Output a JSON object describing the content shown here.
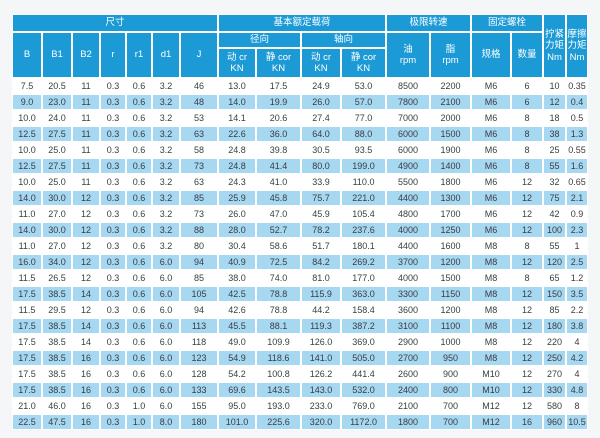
{
  "colors": {
    "header_bg": "#1C9AD6",
    "alt_row_bg": "#A6D8F2",
    "text_color": "#3C3C3C",
    "header_text": "#FFFFFF",
    "page_bg": "#F4F6F7"
  },
  "table": {
    "groups": {
      "dimensions": "尺寸",
      "basic_load": "基本额定载荷",
      "limit_speed": "极限转速",
      "fixing_bolt": "固定螺栓",
      "tightening_torque": "拧紧\n力矩\nNm",
      "friction_torque": "摩擦\n力矩\nNm"
    },
    "columns": {
      "b": "B",
      "b1": "B1",
      "b2": "B2",
      "r": "r",
      "r1": "r1",
      "d1": "d1",
      "j": "J",
      "radial": "径向",
      "axial": "轴向",
      "radial_dynamic": "动 cr\nKN",
      "radial_static": "静 cor\nKN",
      "axial_dynamic": "动 cr\nKN",
      "axial_static": "静 cor\nKN",
      "oil": "油\nrpm",
      "grease": "脂\nrpm",
      "spec": "规格",
      "qty": "数量"
    },
    "rows": [
      [
        "7.5",
        "20.5",
        "11",
        "0.3",
        "0.6",
        "3.2",
        "46",
        "13.0",
        "17.5",
        "24.9",
        "53.0",
        "8500",
        "2200",
        "M6",
        "6",
        "10",
        "0.35"
      ],
      [
        "9.0",
        "23.0",
        "11",
        "0.3",
        "0.6",
        "3.2",
        "48",
        "14.0",
        "19.9",
        "26.0",
        "57.0",
        "7800",
        "2100",
        "M6",
        "6",
        "12",
        "0.4"
      ],
      [
        "10.0",
        "24.0",
        "11",
        "0.3",
        "0.6",
        "3.2",
        "53",
        "14.1",
        "20.6",
        "27.4",
        "77.0",
        "7000",
        "2000",
        "M6",
        "8",
        "18",
        "0.5"
      ],
      [
        "12.5",
        "27.5",
        "11",
        "0.3",
        "0.6",
        "3.2",
        "63",
        "22.6",
        "36.0",
        "64.0",
        "88.0",
        "6000",
        "1500",
        "M6",
        "8",
        "38",
        "1.3"
      ],
      [
        "10.0",
        "25.0",
        "11",
        "0.3",
        "0.6",
        "3.2",
        "58",
        "24.8",
        "39.8",
        "30.5",
        "93.5",
        "6000",
        "1900",
        "M6",
        "8",
        "25",
        "0.55"
      ],
      [
        "12.5",
        "27.5",
        "11",
        "0.3",
        "0.6",
        "3.2",
        "73",
        "24.8",
        "41.4",
        "80.0",
        "199.0",
        "4900",
        "1400",
        "M6",
        "8",
        "55",
        "1.6"
      ],
      [
        "10.0",
        "25.0",
        "11",
        "0.3",
        "0.6",
        "3.2",
        "63",
        "24.3",
        "41.0",
        "33.9",
        "110.0",
        "5500",
        "1800",
        "M6",
        "12",
        "32",
        "0.65"
      ],
      [
        "14.0",
        "30.0",
        "12",
        "0.3",
        "0.6",
        "3.2",
        "85",
        "25.9",
        "45.8",
        "75.7",
        "221.0",
        "4400",
        "1300",
        "M6",
        "12",
        "75",
        "2.1"
      ],
      [
        "11.0",
        "27.0",
        "12",
        "0.3",
        "0.6",
        "3.2",
        "73",
        "26.0",
        "47.0",
        "45.9",
        "105.4",
        "4800",
        "1700",
        "M6",
        "12",
        "42",
        "0.9"
      ],
      [
        "14.0",
        "30.0",
        "12",
        "0.3",
        "0.6",
        "3.2",
        "88",
        "28.0",
        "52.7",
        "78.2",
        "237.6",
        "4000",
        "1250",
        "M6",
        "12",
        "100",
        "2.3"
      ],
      [
        "11.0",
        "27.0",
        "12",
        "0.3",
        "0.6",
        "3.2",
        "80",
        "30.4",
        "58.6",
        "51.7",
        "180.1",
        "4400",
        "1600",
        "M8",
        "8",
        "55",
        "1"
      ],
      [
        "16.0",
        "34.0",
        "12",
        "0.3",
        "0.6",
        "6.0",
        "94",
        "40.9",
        "72.5",
        "84.2",
        "269.2",
        "3700",
        "1200",
        "M8",
        "12",
        "120",
        "2.5"
      ],
      [
        "11.5",
        "26.5",
        "12",
        "0.3",
        "0.6",
        "6.0",
        "85",
        "38.0",
        "74.0",
        "81.0",
        "177.0",
        "4000",
        "1500",
        "M8",
        "8",
        "65",
        "1.2"
      ],
      [
        "17.5",
        "38.5",
        "14",
        "0.3",
        "0.6",
        "6.0",
        "105",
        "42.5",
        "78.8",
        "115.9",
        "363.0",
        "3300",
        "1150",
        "M8",
        "12",
        "150",
        "3.5"
      ],
      [
        "11.5",
        "29.5",
        "12",
        "0.3",
        "0.6",
        "6.0",
        "94",
        "42.6",
        "78.8",
        "44.2",
        "158.4",
        "3600",
        "1200",
        "M8",
        "12",
        "85",
        "2.2"
      ],
      [
        "17.5",
        "38.5",
        "14",
        "0.3",
        "0.6",
        "6.0",
        "113",
        "45.5",
        "88.1",
        "119.3",
        "387.2",
        "3100",
        "1100",
        "M8",
        "12",
        "180",
        "3.8"
      ],
      [
        "17.5",
        "38.5",
        "14",
        "0.3",
        "0.6",
        "6.0",
        "118",
        "49.0",
        "109.9",
        "126.0",
        "369.0",
        "2900",
        "1000",
        "M8",
        "12",
        "220",
        "4"
      ],
      [
        "17.5",
        "38.5",
        "16",
        "0.3",
        "0.6",
        "6.0",
        "123",
        "54.9",
        "118.6",
        "141.0",
        "505.0",
        "2700",
        "950",
        "M8",
        "12",
        "250",
        "4.2"
      ],
      [
        "17.5",
        "38.5",
        "16",
        "0.3",
        "0.6",
        "6.0",
        "128",
        "54.2",
        "100.8",
        "126.2",
        "441.4",
        "2600",
        "900",
        "M10",
        "12",
        "270",
        "4"
      ],
      [
        "17.5",
        "38.5",
        "16",
        "0.3",
        "0.6",
        "6.0",
        "133",
        "69.6",
        "143.5",
        "143.0",
        "532.0",
        "2400",
        "800",
        "M10",
        "12",
        "330",
        "4.8"
      ],
      [
        "21.0",
        "46.0",
        "16",
        "0.3",
        "1.0",
        "6.0",
        "155",
        "95.0",
        "193.0",
        "233.0",
        "769.0",
        "2100",
        "700",
        "M12",
        "12",
        "580",
        "8"
      ],
      [
        "22.5",
        "47.5",
        "16",
        "0.3",
        "1.0",
        "8.0",
        "180",
        "101.0",
        "225.6",
        "320.0",
        "1172.0",
        "1800",
        "700",
        "M12",
        "16",
        "960",
        "10.5"
      ]
    ]
  }
}
